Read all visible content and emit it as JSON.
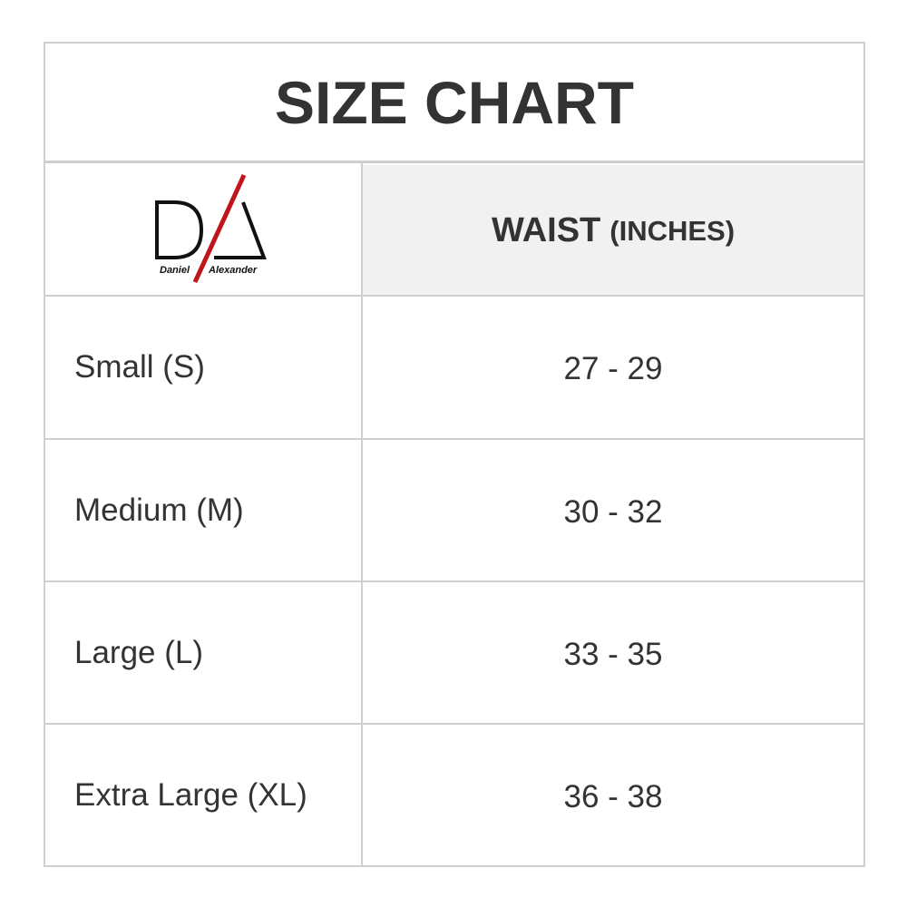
{
  "title": "SIZE CHART",
  "logo": {
    "brand_first": "Daniel",
    "brand_last": "Alexander",
    "accent_color": "#c0161b"
  },
  "header": {
    "column": "WAIST",
    "unit": "(INCHES)"
  },
  "rows": [
    {
      "size": "Small (S)",
      "waist": "27 - 29"
    },
    {
      "size": "Medium (M)",
      "waist": "30 - 32"
    },
    {
      "size": "Large (L)",
      "waist": "33 - 35"
    },
    {
      "size": "Extra Large (XL)",
      "waist": "36 - 38"
    }
  ]
}
